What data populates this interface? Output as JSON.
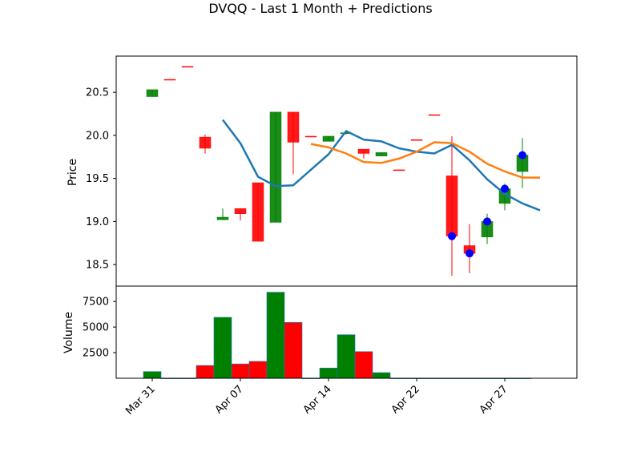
{
  "chart_data": {
    "type": "candlestick",
    "title": "DVQQ - Last 1 Month + Predictions",
    "x_ticks": [
      "Mar 31",
      "Apr 07",
      "Apr 14",
      "Apr 22",
      "Apr 27"
    ],
    "price_axis": {
      "label": "Price",
      "ylim": [
        18.25,
        20.92
      ],
      "ticks": [
        "18.5",
        "19.0",
        "19.5",
        "20.0",
        "20.5"
      ]
    },
    "volume_axis": {
      "label": "Volume",
      "ylim": [
        0,
        9000
      ],
      "ticks": [
        "2500",
        "5000",
        "7500"
      ]
    },
    "candles": [
      {
        "idx": 0,
        "open": 20.45,
        "close": 20.53,
        "high": 20.53,
        "low": 20.45,
        "dir": "up"
      },
      {
        "idx": 1,
        "open": 20.65,
        "close": 20.65,
        "high": 20.65,
        "low": 20.65,
        "dir": "down"
      },
      {
        "idx": 2,
        "open": 20.8,
        "close": 20.8,
        "high": 20.8,
        "low": 20.8,
        "dir": "down"
      },
      {
        "idx": 3,
        "open": 19.98,
        "close": 19.85,
        "high": 20.01,
        "low": 19.79,
        "dir": "down"
      },
      {
        "idx": 4,
        "open": 19.02,
        "close": 19.05,
        "high": 19.15,
        "low": 19.02,
        "dir": "up"
      },
      {
        "idx": 5,
        "open": 19.15,
        "close": 19.09,
        "high": 19.15,
        "low": 19.01,
        "dir": "down"
      },
      {
        "idx": 6,
        "open": 19.45,
        "close": 18.77,
        "high": 19.45,
        "low": 18.77,
        "dir": "down"
      },
      {
        "idx": 7,
        "open": 18.99,
        "close": 20.27,
        "high": 20.27,
        "low": 18.99,
        "dir": "up"
      },
      {
        "idx": 8,
        "open": 20.27,
        "close": 19.92,
        "high": 20.27,
        "low": 19.55,
        "dir": "down"
      },
      {
        "idx": 9,
        "open": 19.99,
        "close": 19.99,
        "high": 19.99,
        "low": 19.99,
        "dir": "down"
      },
      {
        "idx": 10,
        "open": 19.93,
        "close": 19.99,
        "high": 19.99,
        "low": 19.93,
        "dir": "up"
      },
      {
        "idx": 11,
        "open": 20.02,
        "close": 20.03,
        "high": 20.04,
        "low": 20.01,
        "dir": "up"
      },
      {
        "idx": 12,
        "open": 19.84,
        "close": 19.79,
        "high": 19.84,
        "low": 19.73,
        "dir": "down"
      },
      {
        "idx": 13,
        "open": 19.76,
        "close": 19.8,
        "high": 19.8,
        "low": 19.76,
        "dir": "up"
      },
      {
        "idx": 14,
        "open": 19.6,
        "close": 19.6,
        "high": 19.6,
        "low": 19.6,
        "dir": "down"
      },
      {
        "idx": 15,
        "open": 19.95,
        "close": 19.95,
        "high": 19.95,
        "low": 19.95,
        "dir": "down"
      },
      {
        "idx": 16,
        "open": 20.24,
        "close": 20.24,
        "high": 20.24,
        "low": 20.24,
        "dir": "down"
      },
      {
        "idx": 17,
        "open": 19.53,
        "close": 18.83,
        "high": 19.99,
        "low": 18.37,
        "dir": "down"
      },
      {
        "idx": 18,
        "open": 18.72,
        "close": 18.63,
        "high": 18.97,
        "low": 18.4,
        "dir": "down"
      },
      {
        "idx": 19,
        "open": 18.82,
        "close": 19.0,
        "high": 19.09,
        "low": 18.74,
        "dir": "up"
      },
      {
        "idx": 20,
        "open": 19.21,
        "close": 19.38,
        "high": 19.44,
        "low": 19.13,
        "dir": "up"
      },
      {
        "idx": 21,
        "open": 19.58,
        "close": 19.77,
        "high": 19.97,
        "low": 19.39,
        "dir": "up"
      }
    ],
    "series": [
      {
        "name": "",
        "color": "#1f77b4",
        "points": [
          [
            4,
            20.18
          ],
          [
            5,
            19.91
          ],
          [
            6,
            19.52
          ],
          [
            7,
            19.41
          ],
          [
            8,
            19.42
          ],
          [
            10,
            19.78
          ],
          [
            11,
            20.05
          ],
          [
            12,
            19.95
          ],
          [
            13,
            19.93
          ],
          [
            14,
            19.85
          ],
          [
            15,
            19.81
          ],
          [
            16,
            19.79
          ],
          [
            17,
            19.89
          ],
          [
            18,
            19.71
          ],
          [
            19,
            19.49
          ],
          [
            20,
            19.32
          ],
          [
            21,
            19.21
          ],
          [
            22,
            19.13
          ]
        ]
      },
      {
        "name": "",
        "color": "#ff7f0e",
        "points": [
          [
            9,
            19.9
          ],
          [
            10,
            19.86
          ],
          [
            11,
            19.79
          ],
          [
            12,
            19.69
          ],
          [
            13,
            19.68
          ],
          [
            14,
            19.73
          ],
          [
            15,
            19.81
          ],
          [
            16,
            19.92
          ],
          [
            17,
            19.91
          ],
          [
            18,
            19.81
          ],
          [
            19,
            19.67
          ],
          [
            20,
            19.58
          ],
          [
            21,
            19.51
          ],
          [
            22,
            19.51
          ]
        ]
      }
    ],
    "prediction_points": [
      [
        17,
        18.83
      ],
      [
        18,
        18.63
      ],
      [
        19,
        19.0
      ],
      [
        20,
        19.38
      ],
      [
        21,
        19.77
      ]
    ],
    "volume": [
      {
        "idx": 0,
        "value": 650,
        "dir": "up"
      },
      {
        "idx": 1,
        "value": 0,
        "dir": "down"
      },
      {
        "idx": 2,
        "value": 0,
        "dir": "down"
      },
      {
        "idx": 3,
        "value": 1250,
        "dir": "down"
      },
      {
        "idx": 4,
        "value": 5950,
        "dir": "up"
      },
      {
        "idx": 5,
        "value": 1400,
        "dir": "down"
      },
      {
        "idx": 6,
        "value": 1650,
        "dir": "down"
      },
      {
        "idx": 7,
        "value": 8400,
        "dir": "up"
      },
      {
        "idx": 8,
        "value": 5450,
        "dir": "down"
      },
      {
        "idx": 9,
        "value": 0,
        "dir": "down"
      },
      {
        "idx": 10,
        "value": 1000,
        "dir": "up"
      },
      {
        "idx": 11,
        "value": 4250,
        "dir": "up"
      },
      {
        "idx": 12,
        "value": 2600,
        "dir": "down"
      },
      {
        "idx": 13,
        "value": 550,
        "dir": "up"
      },
      {
        "idx": 14,
        "value": 0,
        "dir": "down"
      },
      {
        "idx": 15,
        "value": 0,
        "dir": "down"
      },
      {
        "idx": 16,
        "value": 0,
        "dir": "down"
      },
      {
        "idx": 17,
        "value": 0,
        "dir": "down"
      },
      {
        "idx": 18,
        "value": 0,
        "dir": "down"
      },
      {
        "idx": 19,
        "value": 0,
        "dir": "up"
      },
      {
        "idx": 20,
        "value": 0,
        "dir": "up"
      },
      {
        "idx": 21,
        "value": 0,
        "dir": "up"
      }
    ],
    "colors": {
      "up": "#008000",
      "down": "#ff0000",
      "prediction": "#0000ff"
    },
    "grid": false
  }
}
